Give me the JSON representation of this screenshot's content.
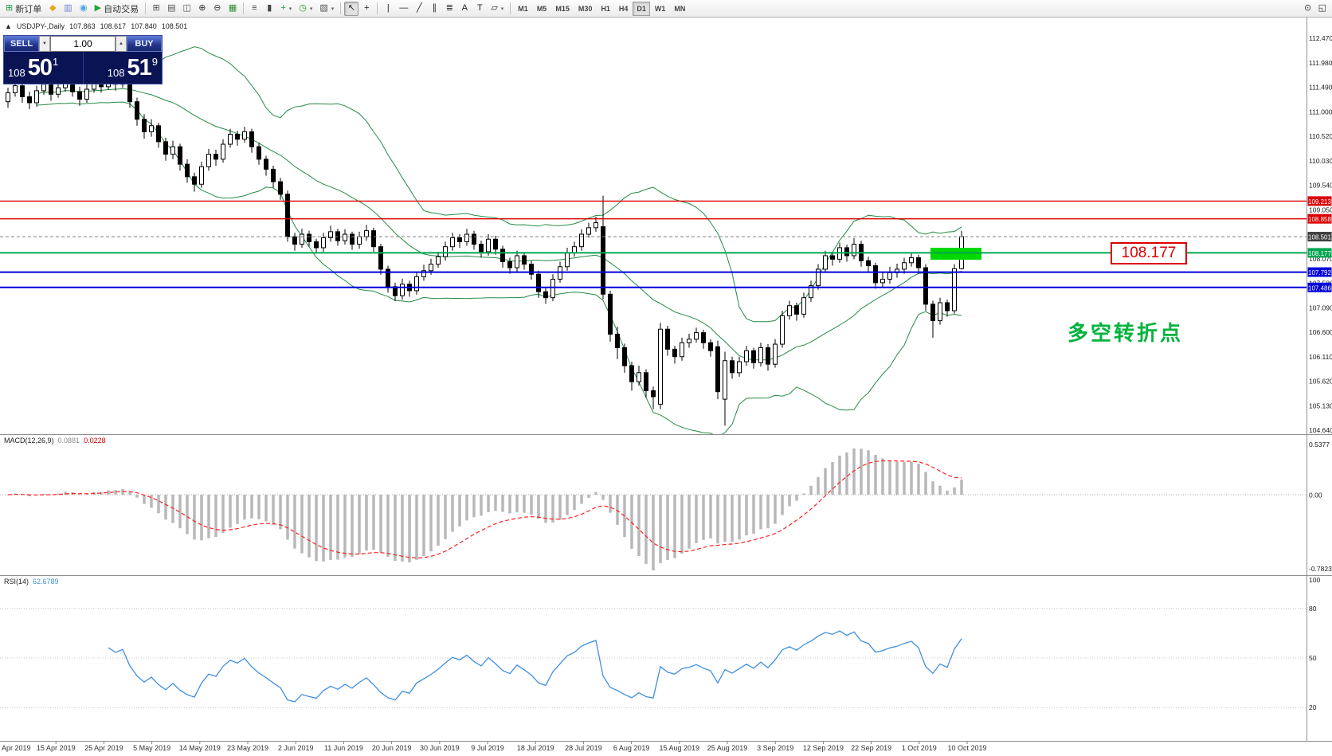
{
  "toolbar": {
    "items": [
      {
        "name": "new-order-button",
        "glyph": "⊞",
        "glyph_color": "#1f9d44",
        "label": "新订单"
      },
      {
        "name": "mql-market-icon-button",
        "glyph": "◆",
        "glyph_color": "#e8a51f"
      },
      {
        "name": "market-watch-icon-button",
        "glyph": "▥",
        "glyph_color": "#6688cc"
      },
      {
        "name": "data-window-icon-button",
        "glyph": "◉",
        "glyph_color": "#4aa3e0"
      },
      {
        "name": "autotrading-button",
        "glyph": "▶",
        "glyph_color": "#21a637",
        "label": "自动交易"
      },
      {
        "name": "separator-1",
        "sep": true
      },
      {
        "name": "new-chart-icon-button",
        "glyph": "⊞",
        "glyph_color": "#555555"
      },
      {
        "name": "tile-windows-icon-button",
        "glyph": "▤",
        "glyph_color": "#555555"
      },
      {
        "name": "cascade-windows-icon-button",
        "glyph": "◫",
        "glyph_color": "#555555"
      },
      {
        "name": "zoom-in-icon-button",
        "glyph": "⊕",
        "glyph_color": "#333333"
      },
      {
        "name": "zoom-out-icon-button",
        "glyph": "⊖",
        "glyph_color": "#333333"
      },
      {
        "name": "grid-icon-button",
        "glyph": "▦",
        "glyph_color": "#2f8f2f"
      },
      {
        "name": "separator-2",
        "sep": true
      },
      {
        "name": "bar-chart-icon-button",
        "glyph": "≡",
        "glyph_color": "#444444"
      },
      {
        "name": "candlestick-chart-icon-button",
        "glyph": "▮",
        "glyph_color": "#444444"
      },
      {
        "name": "indicators-icon-button",
        "glyph": "+",
        "glyph_color": "#1f9d44",
        "caret": true
      },
      {
        "name": "periods-icon-button",
        "glyph": "◷",
        "glyph_color": "#2f8f2f",
        "caret": true
      },
      {
        "name": "templates-icon-button",
        "glyph": "▧",
        "glyph_color": "#555555",
        "caret": true
      },
      {
        "name": "separator-3",
        "sep": true
      },
      {
        "name": "cursor-icon-button",
        "glyph": "↖",
        "glyph_color": "#222222",
        "active": true
      },
      {
        "name": "crosshair-icon-button",
        "glyph": "+",
        "glyph_color": "#222222"
      },
      {
        "name": "separator-4",
        "sep": true
      },
      {
        "name": "vertical-line-icon-button",
        "glyph": "|",
        "glyph_color": "#222222"
      },
      {
        "name": "horizontal-line-icon-button",
        "glyph": "—",
        "glyph_color": "#222222"
      },
      {
        "name": "trendline-icon-button",
        "glyph": "╱",
        "glyph_color": "#222222"
      },
      {
        "name": "channel-icon-button",
        "glyph": "∥",
        "glyph_color": "#222222"
      },
      {
        "name": "fibonacci-icon-button",
        "glyph": "≣",
        "glyph_color": "#222222"
      },
      {
        "name": "text-icon-button",
        "glyph": "A",
        "glyph_color": "#222222"
      },
      {
        "name": "text-label-icon-button",
        "glyph": "T",
        "glyph_color": "#222222"
      },
      {
        "name": "shapes-icon-button",
        "glyph": "▱",
        "glyph_color": "#222222",
        "caret": true
      },
      {
        "name": "separator-5",
        "sep": true
      }
    ],
    "timeframes": [
      "M1",
      "M5",
      "M15",
      "M30",
      "H1",
      "H4",
      "D1",
      "W1",
      "MN"
    ],
    "active_timeframe": "D1",
    "right_items": [
      {
        "name": "search-icon-button",
        "glyph": "⊙",
        "glyph_color": "#333333"
      },
      {
        "name": "panel-icon-button",
        "glyph": "◱",
        "glyph_color": "#333333"
      }
    ]
  },
  "symbol_header": {
    "collapse_icon": "▲",
    "symbol": "USDJPY-,Daily",
    "open": "107.863",
    "high": "108.617",
    "low": "107.840",
    "close": "108.501"
  },
  "trade_panel": {
    "sell_label": "SELL",
    "buy_label": "BUY",
    "volume": "1.00",
    "spin_down_glyph": "▼",
    "spin_up_glyph": "▲",
    "sell_price_prefix": "108",
    "sell_price_main": "50",
    "sell_price_sup": "1",
    "buy_price_prefix": "108",
    "buy_price_main": "51",
    "buy_price_sup": "9"
  },
  "annotations": {
    "price_label": "108.177",
    "turning_point": "多空转折点",
    "highlight_color": "#00d800"
  },
  "levels": [
    {
      "price": "109.213",
      "value": 109.213,
      "color": "#dd0000",
      "tag": "#dd0000",
      "style": "solid",
      "width": 1.4,
      "name": "resistance-line-109213"
    },
    {
      "price": "108.858",
      "value": 108.858,
      "color": "#dd0000",
      "tag": "#dd0000",
      "style": "solid",
      "width": 1.4,
      "name": "resistance-line-108858"
    },
    {
      "price": "108.501",
      "value": 108.501,
      "color": "#808080",
      "tag": "#404040",
      "style": "dash",
      "width": 1,
      "name": "current-price-line"
    },
    {
      "price": "108.177",
      "value": 108.177,
      "color": "#00a651",
      "tag": "#00a651",
      "style": "solid",
      "width": 2,
      "name": "pivot-line-108177"
    },
    {
      "price": "107.792",
      "value": 107.792,
      "color": "#0000dd",
      "tag": "#0000dd",
      "style": "solid",
      "width": 2,
      "name": "support-line-107792"
    },
    {
      "price": "107.486",
      "value": 107.486,
      "color": "#0000dd",
      "tag": "#0000dd",
      "style": "solid",
      "width": 2,
      "name": "support-line-107486"
    }
  ],
  "price_axis": [
    "112.470",
    "111.980",
    "111.490",
    "111.000",
    "110.520",
    "110.030",
    "109.540",
    "109.050",
    "108.560",
    "108.070",
    "107.580",
    "107.090",
    "106.600",
    "106.110",
    "105.620",
    "105.130",
    "104.640"
  ],
  "date_axis": [
    "Apr 2019",
    "15 Apr 2019",
    "25 Apr 2019",
    "5 May 2019",
    "14 May 2019",
    "23 May 2019",
    "2 Jun 2019",
    "11 Jun 2019",
    "20 Jun 2019",
    "30 Jun 2019",
    "9 Jul 2019",
    "18 Jul 2019",
    "28 Jul 2019",
    "6 Aug 2019",
    "15 Aug 2019",
    "25 Aug 2019",
    "3 Sep 2019",
    "12 Sep 2019",
    "22 Sep 2019",
    "1 Oct 2019",
    "10 Oct 2019"
  ],
  "chart_data": {
    "type": "candlestick",
    "symbol": "USDJPY",
    "timeframe": "Daily",
    "title": "USDJPY-,Daily",
    "ylim": [
      104.64,
      112.47
    ],
    "ohlc_current": {
      "open": 107.863,
      "high": 108.617,
      "low": 107.84,
      "close": 108.501
    },
    "candles": [
      [
        111.2,
        111.48,
        111.08,
        111.38
      ],
      [
        111.38,
        111.62,
        111.3,
        111.52
      ],
      [
        111.52,
        111.58,
        111.18,
        111.3
      ],
      [
        111.3,
        111.4,
        111.05,
        111.18
      ],
      [
        111.18,
        111.52,
        111.1,
        111.42
      ],
      [
        111.42,
        111.65,
        111.34,
        111.55
      ],
      [
        111.55,
        111.6,
        111.22,
        111.35
      ],
      [
        111.35,
        111.58,
        111.28,
        111.48
      ],
      [
        111.48,
        111.72,
        111.4,
        111.62
      ],
      [
        111.62,
        111.68,
        111.3,
        111.4
      ],
      [
        111.4,
        111.5,
        111.12,
        111.25
      ],
      [
        111.25,
        111.55,
        111.18,
        111.45
      ],
      [
        111.45,
        111.68,
        111.38,
        111.58
      ],
      [
        111.58,
        111.66,
        111.38,
        111.5
      ],
      [
        111.5,
        111.78,
        111.44,
        111.66
      ],
      [
        111.66,
        111.74,
        111.42,
        111.55
      ],
      [
        111.55,
        111.8,
        111.48,
        111.63
      ],
      [
        111.63,
        111.7,
        111.08,
        111.2
      ],
      [
        111.2,
        111.28,
        110.72,
        110.85
      ],
      [
        110.85,
        110.95,
        110.46,
        110.6
      ],
      [
        110.6,
        110.85,
        110.5,
        110.72
      ],
      [
        110.72,
        110.78,
        110.28,
        110.4
      ],
      [
        110.4,
        110.48,
        110.02,
        110.15
      ],
      [
        110.15,
        110.42,
        110.05,
        110.3
      ],
      [
        110.3,
        110.36,
        109.82,
        109.95
      ],
      [
        109.95,
        110.05,
        109.58,
        109.7
      ],
      [
        109.7,
        109.78,
        109.4,
        109.55
      ],
      [
        109.55,
        110.0,
        109.48,
        109.9
      ],
      [
        109.9,
        110.26,
        109.82,
        110.15
      ],
      [
        110.15,
        110.24,
        109.92,
        110.05
      ],
      [
        110.05,
        110.45,
        109.98,
        110.35
      ],
      [
        110.35,
        110.66,
        110.28,
        110.55
      ],
      [
        110.55,
        110.62,
        110.32,
        110.45
      ],
      [
        110.45,
        110.7,
        110.38,
        110.6
      ],
      [
        110.6,
        110.66,
        110.18,
        110.3
      ],
      [
        110.3,
        110.38,
        109.94,
        110.05
      ],
      [
        110.05,
        110.12,
        109.72,
        109.85
      ],
      [
        109.85,
        109.92,
        109.48,
        109.6
      ],
      [
        109.6,
        109.68,
        109.24,
        109.35
      ],
      [
        109.35,
        109.42,
        108.4,
        108.5
      ],
      [
        108.5,
        108.58,
        108.22,
        108.35
      ],
      [
        108.35,
        108.66,
        108.28,
        108.55
      ],
      [
        108.55,
        108.62,
        108.3,
        108.4
      ],
      [
        108.4,
        108.46,
        108.16,
        108.28
      ],
      [
        108.28,
        108.58,
        108.2,
        108.48
      ],
      [
        108.48,
        108.72,
        108.4,
        108.6
      ],
      [
        108.6,
        108.66,
        108.32,
        108.42
      ],
      [
        108.42,
        108.65,
        108.34,
        108.55
      ],
      [
        108.55,
        108.6,
        108.24,
        108.35
      ],
      [
        108.35,
        108.6,
        108.26,
        108.5
      ],
      [
        108.5,
        108.74,
        108.42,
        108.62
      ],
      [
        108.62,
        108.68,
        108.2,
        108.3
      ],
      [
        108.3,
        108.36,
        107.74,
        107.85
      ],
      [
        107.85,
        107.92,
        107.38,
        107.5
      ],
      [
        107.5,
        107.58,
        107.21,
        107.32
      ],
      [
        107.32,
        107.66,
        107.24,
        107.55
      ],
      [
        107.55,
        107.62,
        107.3,
        107.42
      ],
      [
        107.42,
        107.8,
        107.34,
        107.7
      ],
      [
        107.7,
        107.94,
        107.62,
        107.82
      ],
      [
        107.82,
        108.06,
        107.74,
        107.95
      ],
      [
        107.95,
        108.2,
        107.88,
        108.1
      ],
      [
        108.1,
        108.4,
        108.02,
        108.3
      ],
      [
        108.3,
        108.58,
        108.22,
        108.48
      ],
      [
        108.48,
        108.55,
        108.28,
        108.4
      ],
      [
        108.4,
        108.66,
        108.32,
        108.55
      ],
      [
        108.55,
        108.62,
        108.24,
        108.35
      ],
      [
        108.35,
        108.42,
        108.08,
        108.2
      ],
      [
        108.2,
        108.55,
        108.12,
        108.45
      ],
      [
        108.45,
        108.52,
        108.14,
        108.25
      ],
      [
        108.25,
        108.32,
        107.88,
        108.0
      ],
      [
        108.0,
        108.08,
        107.76,
        107.88
      ],
      [
        107.88,
        108.22,
        107.8,
        108.12
      ],
      [
        108.12,
        108.18,
        107.84,
        107.95
      ],
      [
        107.95,
        108.02,
        107.64,
        107.75
      ],
      [
        107.75,
        107.82,
        107.28,
        107.4
      ],
      [
        107.4,
        107.48,
        107.16,
        107.28
      ],
      [
        107.28,
        107.75,
        107.21,
        107.65
      ],
      [
        107.65,
        108.0,
        107.58,
        107.9
      ],
      [
        107.9,
        108.28,
        107.82,
        108.18
      ],
      [
        108.18,
        108.4,
        108.1,
        108.3
      ],
      [
        108.3,
        108.65,
        108.22,
        108.55
      ],
      [
        108.55,
        108.78,
        108.48,
        108.68
      ],
      [
        108.68,
        108.9,
        108.6,
        108.78
      ],
      [
        108.7,
        109.32,
        107.25,
        107.35
      ],
      [
        107.35,
        107.42,
        106.4,
        106.55
      ],
      [
        106.55,
        106.7,
        106.05,
        106.28
      ],
      [
        106.28,
        106.36,
        105.78,
        105.92
      ],
      [
        105.92,
        106.0,
        105.42,
        105.6
      ],
      [
        105.6,
        105.92,
        105.52,
        105.78
      ],
      [
        105.78,
        105.85,
        105.28,
        105.42
      ],
      [
        105.42,
        105.5,
        105.05,
        105.3
      ],
      [
        105.15,
        106.78,
        105.05,
        106.65
      ],
      [
        106.65,
        106.72,
        106.12,
        106.25
      ],
      [
        106.25,
        106.32,
        105.96,
        106.1
      ],
      [
        106.1,
        106.48,
        106.02,
        106.38
      ],
      [
        106.38,
        106.56,
        106.28,
        106.45
      ],
      [
        106.45,
        106.68,
        106.38,
        106.58
      ],
      [
        106.58,
        106.64,
        106.26,
        106.38
      ],
      [
        106.38,
        106.45,
        106.1,
        106.22
      ],
      [
        106.3,
        106.42,
        105.25,
        105.4
      ],
      [
        105.25,
        106.2,
        104.72,
        106.02
      ],
      [
        106.02,
        106.1,
        105.66,
        105.78
      ],
      [
        105.78,
        106.1,
        105.7,
        106.0
      ],
      [
        106.0,
        106.32,
        105.92,
        106.22
      ],
      [
        106.22,
        106.28,
        105.86,
        105.98
      ],
      [
        105.98,
        106.38,
        105.9,
        106.28
      ],
      [
        106.28,
        106.35,
        105.82,
        105.95
      ],
      [
        105.95,
        106.45,
        105.88,
        106.35
      ],
      [
        106.35,
        107.02,
        106.28,
        106.92
      ],
      [
        106.92,
        107.22,
        106.84,
        107.12
      ],
      [
        107.12,
        107.18,
        106.82,
        106.95
      ],
      [
        106.95,
        107.38,
        106.88,
        107.28
      ],
      [
        107.28,
        107.62,
        107.2,
        107.52
      ],
      [
        107.52,
        107.95,
        107.44,
        107.85
      ],
      [
        107.85,
        108.22,
        107.78,
        108.12
      ],
      [
        108.12,
        108.18,
        107.92,
        108.05
      ],
      [
        108.05,
        108.38,
        107.98,
        108.28
      ],
      [
        108.28,
        108.34,
        108.0,
        108.12
      ],
      [
        108.12,
        108.47,
        108.05,
        108.35
      ],
      [
        108.35,
        108.42,
        107.9,
        108.02
      ],
      [
        108.02,
        108.1,
        107.8,
        107.92
      ],
      [
        107.92,
        107.98,
        107.46,
        107.58
      ],
      [
        107.58,
        107.78,
        107.48,
        107.65
      ],
      [
        107.65,
        107.9,
        107.56,
        107.78
      ],
      [
        107.78,
        107.96,
        107.68,
        107.85
      ],
      [
        107.85,
        108.08,
        107.76,
        107.98
      ],
      [
        107.98,
        108.18,
        107.9,
        108.08
      ],
      [
        108.08,
        108.14,
        107.76,
        107.88
      ],
      [
        107.88,
        107.95,
        107.02,
        107.15
      ],
      [
        107.15,
        107.22,
        106.48,
        106.82
      ],
      [
        106.82,
        107.28,
        106.74,
        107.18
      ],
      [
        107.18,
        107.24,
        106.9,
        107.02
      ],
      [
        107.02,
        107.95,
        106.96,
        107.86
      ],
      [
        107.863,
        108.617,
        107.84,
        108.501
      ]
    ],
    "indicators": {
      "bollinger": {
        "period": 20,
        "deviation": 2,
        "color": "#238b45"
      },
      "macd": {
        "label": "MACD(12,26,9)",
        "value": "0.0881",
        "signal_value": "0.0228",
        "axis_labels": [
          "0.5377",
          "0.00",
          "-0.7823"
        ],
        "histogram_color": "#b8b8b8",
        "signal_color": "#ff2020"
      },
      "rsi": {
        "label": "RSI(14)",
        "value": "62.6789",
        "axis_labels": [
          "100",
          "80",
          "50",
          "20"
        ],
        "color": "#3f8fdf"
      }
    },
    "legend_position": "none",
    "grid": false
  }
}
